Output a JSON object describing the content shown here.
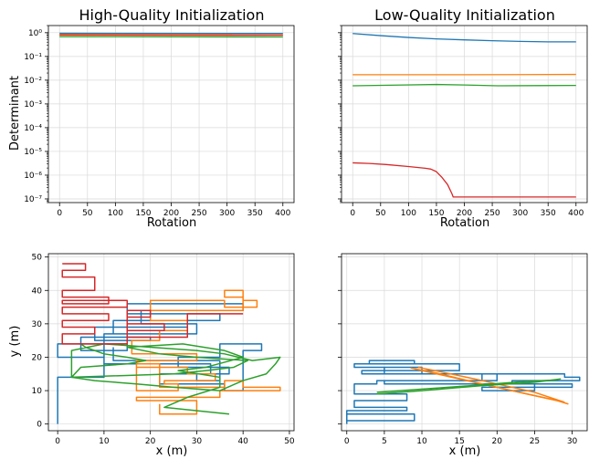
{
  "colors": {
    "blue": "#1f77b4",
    "orange": "#ff7f0e",
    "green": "#2ca02c",
    "red": "#d62728"
  },
  "chart_data": [
    {
      "type": "line",
      "title": "High-Quality Initialization",
      "xlabel": "Rotation",
      "ylabel": "Determinant",
      "yscale": "log",
      "xlim": [
        -20,
        420
      ],
      "ylim": [
        7e-08,
        2
      ],
      "xticks": [
        0,
        50,
        100,
        150,
        200,
        250,
        300,
        350,
        400
      ],
      "yticks": [
        1,
        0.1,
        0.01,
        0.001,
        0.0001,
        1e-05,
        1e-06,
        1e-07
      ],
      "ytick_labels": [
        "10^0",
        "10^-1",
        "10^-2",
        "10^-3",
        "10^-4",
        "10^-5",
        "10^-6",
        "10^-7"
      ],
      "grid": true,
      "series": [
        {
          "color": "blue",
          "x": [
            0,
            400
          ],
          "y": [
            0.95,
            0.93
          ]
        },
        {
          "color": "orange",
          "x": [
            0,
            400
          ],
          "y": [
            0.85,
            0.83
          ]
        },
        {
          "color": "red",
          "x": [
            0,
            400
          ],
          "y": [
            0.8,
            0.78
          ]
        },
        {
          "color": "green",
          "x": [
            0,
            400
          ],
          "y": [
            0.68,
            0.66
          ]
        }
      ]
    },
    {
      "type": "line",
      "title": "Low-Quality Initialization",
      "xlabel": "Rotation",
      "ylabel": "",
      "yscale": "log",
      "xlim": [
        -20,
        420
      ],
      "ylim": [
        7e-08,
        2
      ],
      "xticks": [
        0,
        50,
        100,
        150,
        200,
        250,
        300,
        350,
        400
      ],
      "grid": true,
      "series": [
        {
          "color": "blue",
          "x": [
            0,
            50,
            100,
            150,
            200,
            250,
            300,
            350,
            400
          ],
          "y": [
            0.92,
            0.75,
            0.63,
            0.55,
            0.5,
            0.46,
            0.43,
            0.41,
            0.41
          ]
        },
        {
          "color": "orange",
          "x": [
            0,
            100,
            200,
            300,
            400
          ],
          "y": [
            0.017,
            0.017,
            0.017,
            0.0172,
            0.0175
          ]
        },
        {
          "color": "green",
          "x": [
            0,
            80,
            150,
            200,
            260,
            330,
            400
          ],
          "y": [
            0.0058,
            0.0062,
            0.0066,
            0.0063,
            0.0058,
            0.0059,
            0.006
          ]
        },
        {
          "color": "red",
          "x": [
            0,
            30,
            60,
            100,
            130,
            140,
            150,
            160,
            170,
            178,
            180,
            400
          ],
          "y": [
            3.3e-06,
            3.1e-06,
            2.8e-06,
            2.3e-06,
            1.95e-06,
            1.8e-06,
            1.4e-06,
            8e-07,
            4e-07,
            1.6e-07,
            1.2e-07,
            1.2e-07
          ]
        }
      ]
    },
    {
      "type": "line",
      "title": "",
      "xlabel": "x (m)",
      "ylabel": "y (m)",
      "xlim": [
        -2,
        51
      ],
      "ylim": [
        -2,
        51
      ],
      "xticks": [
        0,
        10,
        20,
        30,
        40,
        50
      ],
      "yticks": [
        0,
        10,
        20,
        30,
        40,
        50
      ],
      "grid": true,
      "series": [
        {
          "color": "blue",
          "x": [
            0,
            0,
            10,
            10,
            0,
            0,
            15,
            15,
            5,
            5,
            20,
            20,
            8,
            8,
            28,
            28,
            12,
            12,
            35,
            35,
            15,
            15,
            40,
            40,
            18,
            18,
            30,
            30,
            10,
            10,
            33,
            33,
            22,
            22,
            36,
            36,
            40,
            40,
            44,
            44,
            35,
            35,
            26,
            26,
            37,
            37,
            30,
            30,
            35,
            35,
            12,
            12
          ],
          "y": [
            0,
            14,
            14,
            20,
            20,
            24,
            24,
            22,
            22,
            26,
            26,
            25,
            25,
            29,
            29,
            27,
            27,
            31,
            31,
            33,
            33,
            36,
            36,
            34,
            34,
            30,
            30,
            27,
            27,
            18,
            18,
            15,
            15,
            12,
            12,
            10,
            10,
            22,
            22,
            24,
            24,
            20,
            20,
            17,
            17,
            15,
            15,
            13,
            13,
            19,
            19,
            23
          ]
        },
        {
          "color": "orange",
          "x": [
            20,
            40,
            40,
            36,
            36,
            40,
            40,
            43,
            43,
            36,
            36,
            20,
            20,
            28,
            28,
            22,
            22,
            16,
            16,
            30,
            30,
            17,
            17,
            28,
            28,
            34,
            34,
            23,
            23,
            26,
            26,
            17,
            17,
            22,
            22,
            36,
            36,
            40,
            40,
            48,
            48,
            35,
            35,
            17,
            17,
            30,
            30,
            22,
            22
          ],
          "y": [
            34,
            34,
            40,
            40,
            38,
            38,
            37,
            37,
            35,
            35,
            37,
            37,
            31,
            31,
            28,
            28,
            25,
            25,
            21,
            21,
            19,
            19,
            17,
            17,
            15,
            15,
            13,
            13,
            12,
            12,
            10,
            10,
            18,
            18,
            11,
            11,
            13,
            13,
            11,
            11,
            10,
            10,
            8,
            8,
            7,
            7,
            3,
            3,
            6
          ]
        },
        {
          "color": "green",
          "x": [
            5,
            6,
            10,
            15,
            19,
            15,
            5,
            3,
            8,
            17,
            25,
            35,
            40,
            45,
            47,
            48,
            42,
            36,
            30,
            20,
            10,
            3,
            3,
            25,
            32,
            38,
            41,
            30,
            22,
            15,
            27,
            36,
            40,
            32,
            26,
            35,
            35,
            28,
            23,
            37
          ],
          "y": [
            24,
            23,
            21,
            20,
            19,
            18,
            17,
            14,
            13,
            12,
            11,
            10,
            13,
            15,
            18,
            20,
            19,
            21,
            22,
            23,
            24,
            22,
            14,
            15,
            16,
            17,
            19,
            20,
            21,
            23,
            24,
            22,
            20,
            17,
            16,
            14,
            11,
            8,
            5,
            3
          ]
        },
        {
          "color": "red",
          "x": [
            1,
            6,
            6,
            1,
            1,
            8,
            8,
            1,
            1,
            11,
            11,
            1,
            1,
            15,
            15,
            1,
            1,
            11,
            11,
            1,
            1,
            8,
            8,
            1,
            1,
            15,
            15,
            20,
            20,
            15,
            15,
            23,
            23,
            15,
            15,
            28,
            28,
            40
          ],
          "y": [
            48,
            48,
            46,
            46,
            44,
            44,
            40,
            40,
            38,
            38,
            36,
            36,
            37,
            37,
            35,
            35,
            33,
            33,
            31,
            31,
            29,
            29,
            27,
            27,
            24,
            24,
            34,
            34,
            32,
            32,
            30,
            30,
            28,
            28,
            26,
            26,
            33,
            33
          ]
        }
      ]
    },
    {
      "type": "line",
      "title": "",
      "xlabel": "x (m)",
      "ylabel": "",
      "xlim": [
        -0.7,
        32
      ],
      "ylim": [
        -2,
        51
      ],
      "xticks": [
        0,
        5,
        10,
        15,
        20,
        25,
        30
      ],
      "grid": true,
      "series": [
        {
          "color": "blue",
          "x": [
            0,
            0,
            9,
            9,
            0,
            0,
            8,
            8,
            1,
            1,
            8,
            8,
            1,
            1,
            4,
            4,
            18,
            18,
            29,
            29,
            31,
            31,
            22,
            22,
            30,
            30,
            18,
            18,
            25,
            25,
            5,
            5,
            20,
            20,
            5,
            5,
            10,
            10,
            2,
            2,
            15,
            15,
            3,
            3,
            9,
            9,
            1,
            1,
            5
          ],
          "y": [
            0,
            3,
            3,
            1,
            1,
            4,
            4,
            5,
            5,
            7,
            7,
            9,
            9,
            12,
            12,
            13,
            13,
            15,
            15,
            14,
            14,
            13,
            13,
            12,
            12,
            11,
            11,
            10,
            10,
            12,
            12,
            13,
            13,
            15,
            15,
            17,
            17,
            15,
            15,
            16,
            16,
            18,
            18,
            19,
            19,
            18,
            18,
            17,
            17
          ]
        },
        {
          "color": "orange",
          "x": [
            9,
            12,
            16,
            20,
            24,
            28,
            29.5
          ],
          "y": [
            16.5,
            15,
            13,
            11,
            9,
            7,
            6
          ]
        },
        {
          "color": "orange",
          "x": [
            9.5,
            13,
            17,
            21,
            25,
            29
          ],
          "y": [
            17,
            15.4,
            13.5,
            11.5,
            9.5,
            6.5
          ]
        },
        {
          "color": "orange",
          "x": [
            8.5,
            12,
            18,
            24,
            28.5
          ],
          "y": [
            16.8,
            15.2,
            12,
            9,
            6.8
          ]
        },
        {
          "color": "green",
          "x": [
            4,
            10,
            18,
            25,
            28.5
          ],
          "y": [
            9,
            10,
            11.5,
            12.5,
            13.5
          ]
        },
        {
          "color": "green",
          "x": [
            4,
            9,
            16,
            23,
            28
          ],
          "y": [
            9.5,
            10.3,
            11.4,
            12.6,
            13.2
          ]
        }
      ]
    }
  ]
}
